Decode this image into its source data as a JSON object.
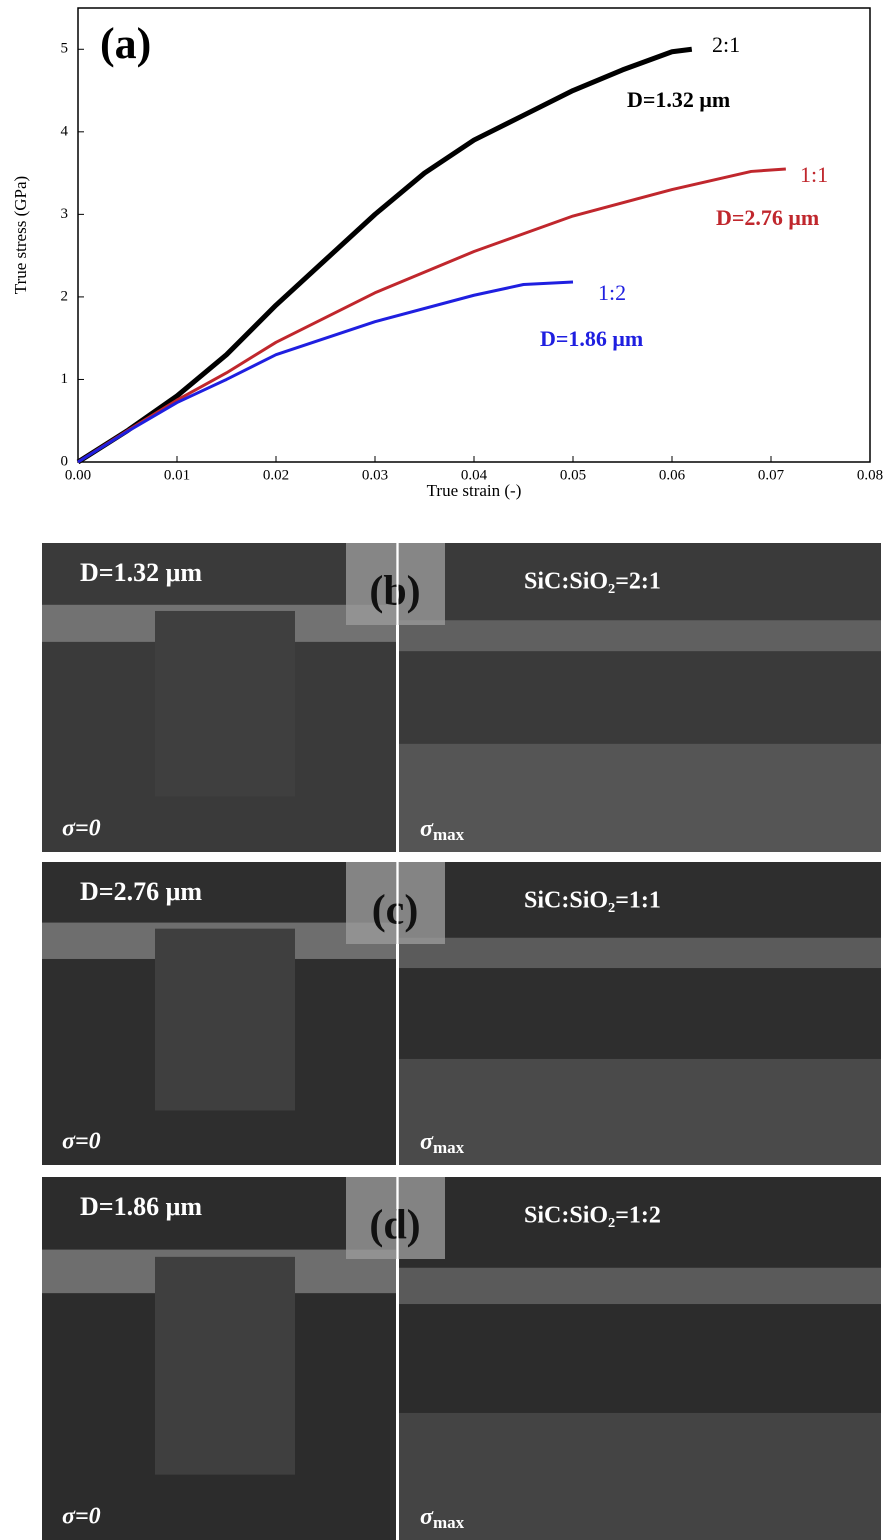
{
  "chart_data": {
    "type": "line",
    "panel_label": "(a)",
    "xlabel": "True strain (-)",
    "ylabel": "True stress (GPa)",
    "xlim": [
      0,
      0.08
    ],
    "ylim": [
      0,
      5.5
    ],
    "xticks": [
      {
        "value": 0,
        "label": "0.00"
      },
      {
        "value": 0.01,
        "label": "0.01"
      },
      {
        "value": 0.02,
        "label": "0.02"
      },
      {
        "value": 0.03,
        "label": "0.03"
      },
      {
        "value": 0.04,
        "label": "0.04"
      },
      {
        "value": 0.05,
        "label": "0.05"
      },
      {
        "value": 0.06,
        "label": "0.06"
      },
      {
        "value": 0.07,
        "label": "0.07"
      },
      {
        "value": 0.08,
        "label": "0.08"
      }
    ],
    "yticks": [
      0,
      1,
      2,
      3,
      4,
      5
    ],
    "series": [
      {
        "name": "2:1",
        "color": "#000000",
        "x": [
          0,
          0.005,
          0.01,
          0.015,
          0.02,
          0.025,
          0.03,
          0.035,
          0.04,
          0.045,
          0.05,
          0.055,
          0.06,
          0.062
        ],
        "values": [
          0,
          0.38,
          0.8,
          1.3,
          1.9,
          2.45,
          3.0,
          3.5,
          3.9,
          4.2,
          4.5,
          4.75,
          4.97,
          5.0
        ]
      },
      {
        "name": "1:1",
        "color": "#c0272d",
        "x": [
          0,
          0.005,
          0.01,
          0.015,
          0.02,
          0.03,
          0.04,
          0.05,
          0.06,
          0.068,
          0.0715
        ],
        "values": [
          0,
          0.38,
          0.75,
          1.08,
          1.45,
          2.05,
          2.55,
          2.98,
          3.3,
          3.52,
          3.55
        ]
      },
      {
        "name": "1:2",
        "color": "#1f1fe0",
        "x": [
          0,
          0.005,
          0.01,
          0.015,
          0.02,
          0.03,
          0.04,
          0.045,
          0.05
        ],
        "values": [
          0,
          0.37,
          0.72,
          1.0,
          1.3,
          1.7,
          2.02,
          2.15,
          2.18
        ]
      }
    ],
    "annotations": [
      {
        "text": "D=1.32 μm",
        "color": "#000000"
      },
      {
        "text": "D=2.76 μm",
        "color": "#c0272d"
      },
      {
        "text": "D=1.86 μm",
        "color": "#1f1fe0"
      }
    ]
  },
  "panels": [
    {
      "label": "(b)",
      "diameter": "D=1.32 μm",
      "ratio": "SiC:SiO₂=2:1",
      "sigma_zero": "σ=0",
      "sigma_max": {
        "symbol": "σ",
        "subscript": "max"
      }
    },
    {
      "label": "(c)",
      "diameter": "D=2.76 μm",
      "ratio": "SiC:SiO₂=1:1",
      "sigma_zero": "σ=0",
      "sigma_max": {
        "symbol": "σ",
        "subscript": "max"
      }
    },
    {
      "label": "(d)",
      "diameter": "D=1.86 μm",
      "ratio": "SiC:SiO₂=1:2",
      "sigma_zero": "σ=0",
      "sigma_max": {
        "symbol": "σ",
        "subscript": "max"
      }
    }
  ]
}
